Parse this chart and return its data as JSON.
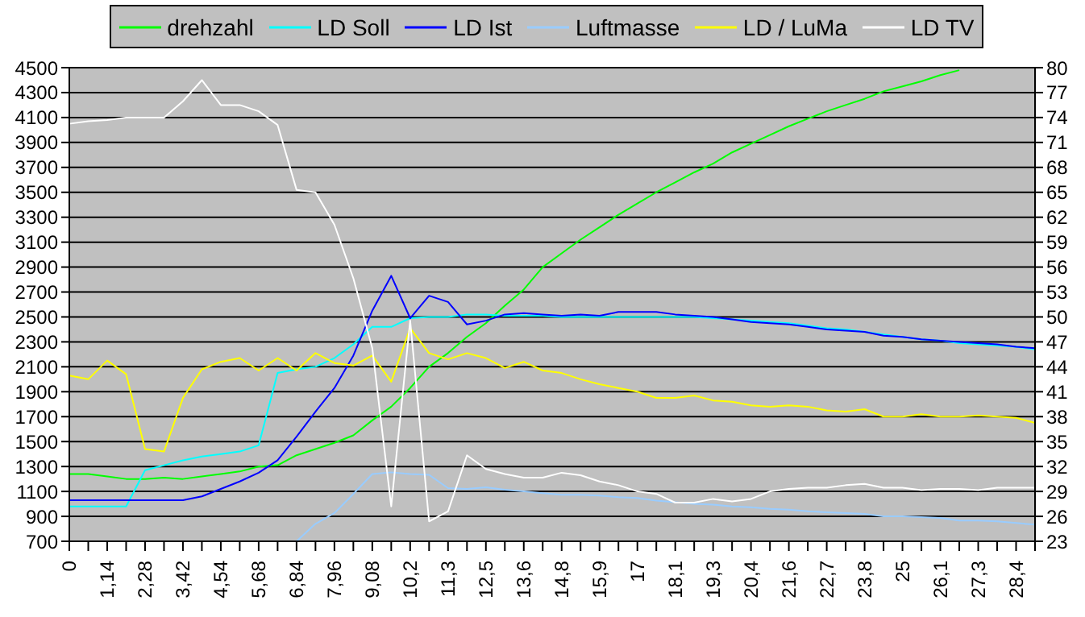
{
  "chart_data": {
    "type": "line",
    "categories": [
      "0",
      null,
      "1,14",
      null,
      "2,28",
      null,
      "3,42",
      null,
      "4,54",
      null,
      "5,68",
      null,
      "6,84",
      null,
      "7,96",
      null,
      "9,08",
      null,
      "10,2",
      null,
      "11,3",
      null,
      "12,5",
      null,
      "13,6",
      null,
      "14,8",
      null,
      "15,9",
      null,
      "17",
      null,
      "18,1",
      null,
      "19,3",
      null,
      "20,4",
      null,
      "21,6",
      null,
      "22,7",
      null,
      "23,8",
      null,
      "25",
      null,
      "26,1",
      null,
      "27,3",
      null,
      "28,4",
      null
    ],
    "series": [
      {
        "name": "drehzahl",
        "color": "#00ff00",
        "values": [
          1240,
          1240,
          1220,
          1200,
          1200,
          1210,
          1200,
          1220,
          1240,
          1260,
          1300,
          1310,
          1390,
          1440,
          1490,
          1550,
          1670,
          1780,
          1930,
          2100,
          2210,
          2340,
          2450,
          2590,
          2720,
          2900,
          3010,
          3120,
          3220,
          3320,
          3410,
          3500,
          3580,
          3660,
          3730,
          3820,
          3890,
          3960,
          4030,
          4090,
          4150,
          4200,
          4250,
          4310,
          4350,
          4390,
          4440,
          4480,
          null,
          null,
          null,
          null
        ]
      },
      {
        "name": "LD Soll",
        "color": "#00ffff",
        "values": [
          980,
          980,
          980,
          980,
          1270,
          1310,
          1350,
          1380,
          1400,
          1420,
          1470,
          2050,
          2080,
          2100,
          2170,
          2280,
          2420,
          2420,
          2490,
          2500,
          2500,
          2520,
          2520,
          2510,
          2510,
          2510,
          2500,
          2500,
          2500,
          2500,
          2500,
          2500,
          2500,
          2500,
          2490,
          2480,
          2470,
          2460,
          2450,
          2430,
          2410,
          2400,
          2380,
          2360,
          2340,
          2320,
          2310,
          2290,
          2280,
          2270,
          2260,
          2240
        ]
      },
      {
        "name": "LD Ist",
        "color": "#0000ff",
        "values": [
          1030,
          1030,
          1030,
          1030,
          1030,
          1030,
          1030,
          1060,
          1120,
          1180,
          1250,
          1350,
          1540,
          1740,
          1930,
          2190,
          2550,
          2830,
          2490,
          2670,
          2620,
          2440,
          2470,
          2520,
          2530,
          2520,
          2510,
          2520,
          2510,
          2540,
          2540,
          2540,
          2520,
          2510,
          2500,
          2480,
          2460,
          2450,
          2440,
          2420,
          2400,
          2390,
          2380,
          2350,
          2340,
          2320,
          2310,
          2300,
          2290,
          2280,
          2260,
          2250
        ]
      },
      {
        "name": "Luftmasse",
        "color": "#99ccff",
        "axis": "y2",
        "values": [
          null,
          null,
          null,
          null,
          null,
          null,
          null,
          null,
          null,
          null,
          null,
          null,
          23,
          25.1,
          26.4,
          28.7,
          31.1,
          31.3,
          31.1,
          31.0,
          29.4,
          29.3,
          29.5,
          29.2,
          29.0,
          28.8,
          28.6,
          28.6,
          28.5,
          28.3,
          28.2,
          27.9,
          27.7,
          27.5,
          27.4,
          27.2,
          27.1,
          26.9,
          26.8,
          26.6,
          26.5,
          26.4,
          26.3,
          26.0,
          26.0,
          25.9,
          25.8,
          25.5,
          25.5,
          25.4,
          25.2,
          25.0
        ]
      },
      {
        "name": "LD / LuMa",
        "color": "#ffff00",
        "values": [
          2030,
          2000,
          2150,
          2040,
          1440,
          1420,
          1850,
          2080,
          2140,
          2170,
          2070,
          2170,
          2070,
          2210,
          2130,
          2110,
          2190,
          1980,
          2410,
          2210,
          2160,
          2210,
          2170,
          2090,
          2140,
          2070,
          2050,
          2000,
          1960,
          1930,
          1900,
          1850,
          1850,
          1870,
          1830,
          1820,
          1790,
          1780,
          1790,
          1780,
          1750,
          1740,
          1760,
          1700,
          1700,
          1720,
          1700,
          1700,
          1710,
          1700,
          1690,
          1650
        ]
      },
      {
        "name": "LD TV",
        "color": "#ffffff",
        "values": [
          4050,
          4070,
          4080,
          4100,
          4100,
          4100,
          4230,
          4400,
          4200,
          4200,
          4150,
          4040,
          3520,
          3500,
          3240,
          2810,
          2250,
          980,
          2470,
          860,
          940,
          1390,
          1280,
          1240,
          1210,
          1210,
          1250,
          1230,
          1180,
          1150,
          1100,
          1080,
          1010,
          1010,
          1040,
          1020,
          1040,
          1100,
          1120,
          1130,
          1130,
          1150,
          1160,
          1130,
          1130,
          1110,
          1120,
          1120,
          1110,
          1130,
          1130,
          1130
        ]
      }
    ],
    "ylim": [
      700,
      4500
    ],
    "yticks": [
      700,
      900,
      1100,
      1300,
      1500,
      1700,
      1900,
      2100,
      2300,
      2500,
      2700,
      2900,
      3100,
      3300,
      3500,
      3700,
      3900,
      4100,
      4300,
      4500
    ],
    "y2lim": [
      23,
      80
    ],
    "y2ticks": [
      23,
      26,
      29,
      32,
      35,
      38,
      41,
      44,
      47,
      50,
      53,
      56,
      59,
      62,
      65,
      68,
      71,
      74,
      77,
      80
    ],
    "grid": "y",
    "legend": "top",
    "marker": "none",
    "line_style": "solid"
  }
}
